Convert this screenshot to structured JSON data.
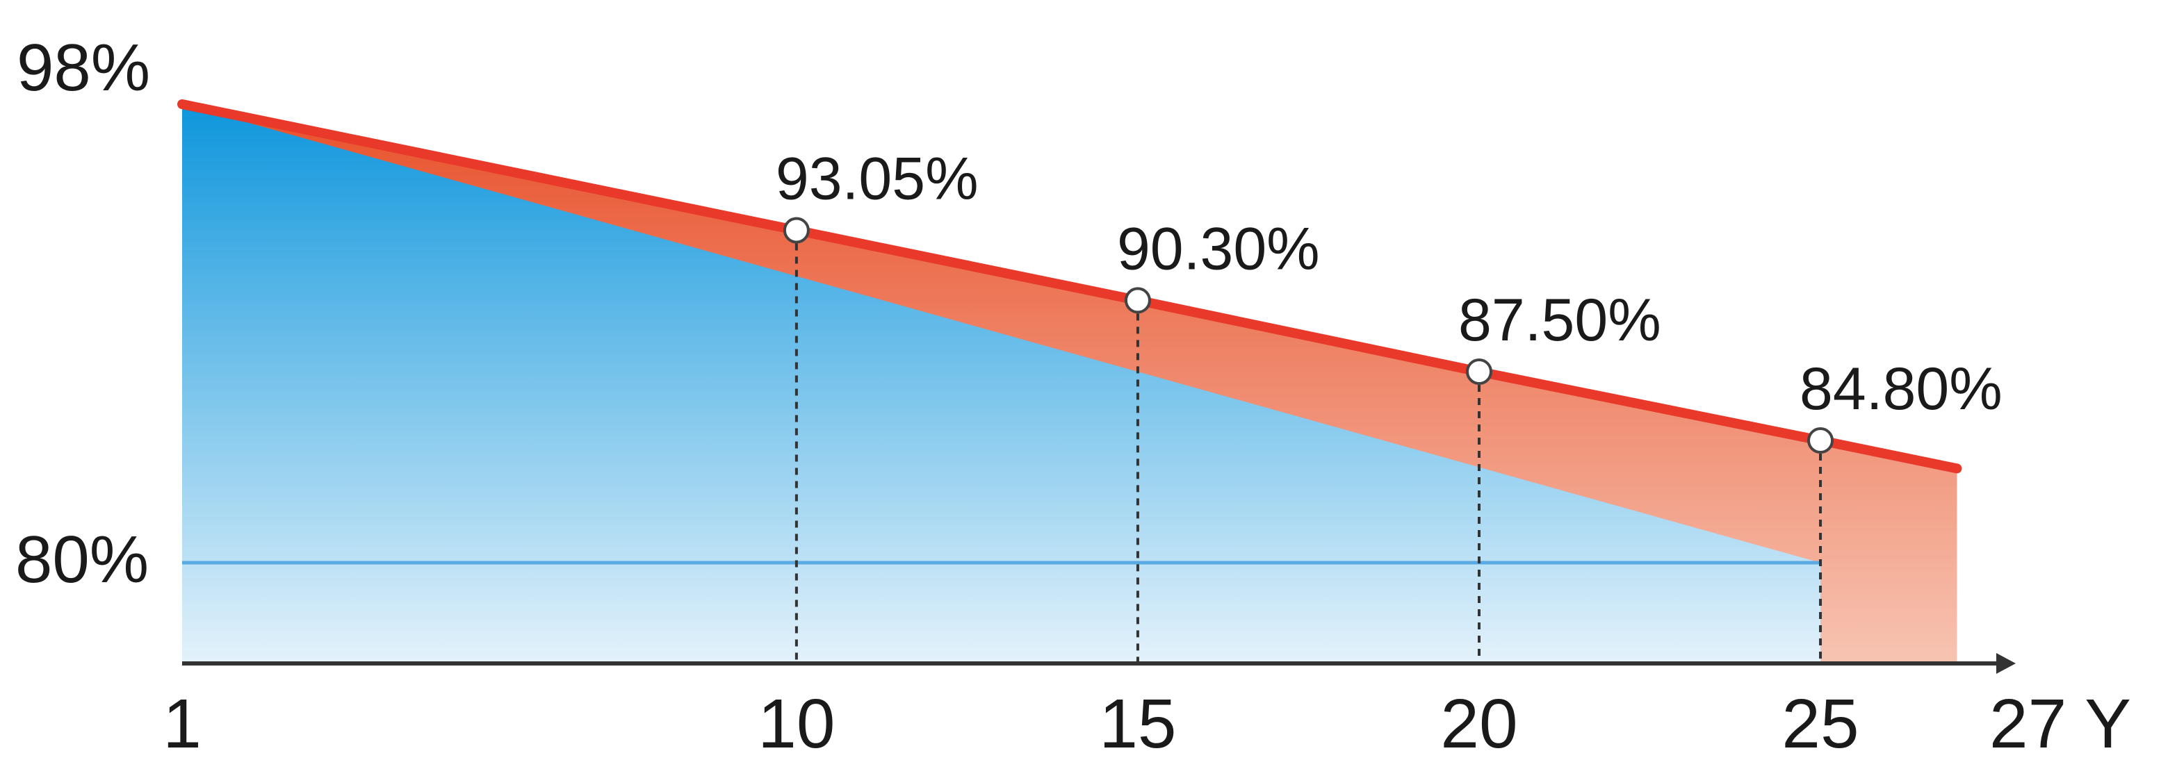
{
  "chart_data": {
    "type": "area",
    "x_ticks": [
      "1",
      "10",
      "15",
      "20",
      "25",
      "27 Y"
    ],
    "y_labels": [
      "98%",
      "80%"
    ],
    "ylim": [
      80,
      98
    ],
    "series": [
      {
        "x": [
          1,
          10,
          15,
          20,
          25,
          27
        ],
        "values": [
          98,
          93.05,
          90.3,
          87.5,
          84.8,
          83.7
        ],
        "color": "#e8392a",
        "fill_top": "#e8502a",
        "fill_bottom": "#f7c4b2"
      },
      {
        "x": [
          1,
          25
        ],
        "values": [
          98,
          80
        ],
        "color": "#5aa9e0",
        "fill_top": "#0e96dc",
        "fill_bottom": "#e4f2fb"
      }
    ],
    "point_labels": [
      {
        "x": 10,
        "value": 93.05,
        "text": "93.05%"
      },
      {
        "x": 15,
        "value": 90.3,
        "text": "90.30%"
      },
      {
        "x": 20,
        "value": 87.5,
        "text": "87.50%"
      },
      {
        "x": 25,
        "value": 84.8,
        "text": "84.80%"
      }
    ],
    "reference_line": {
      "value": 80,
      "color": "#5aa9e0"
    },
    "axis_color": "#333333"
  }
}
